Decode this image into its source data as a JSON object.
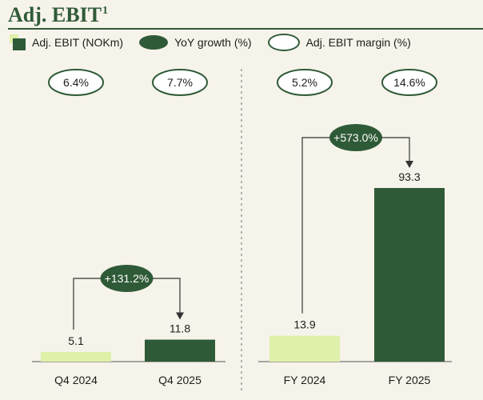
{
  "title": "Adj. EBIT",
  "title_footnote": "1",
  "legend": [
    {
      "label": "Adj. EBIT (NOKm)",
      "icon": "bar-swatch"
    },
    {
      "label": "YoY growth (%)",
      "icon": "dark-oval"
    },
    {
      "label": "Adj. EBIT margin (%)",
      "icon": "outline-oval"
    }
  ],
  "colors": {
    "prior_bar": "#dff0a8",
    "current_bar": "#2f5a37",
    "accent": "#2f5a37",
    "background": "#f6f3ea"
  },
  "chart_data": [
    {
      "type": "bar",
      "categories": [
        "Q4 2024",
        "Q4 2025"
      ],
      "values": [
        5.1,
        11.8
      ],
      "value_labels": [
        "5.1",
        "11.8"
      ],
      "margins": [
        "6.4%",
        "7.7%"
      ],
      "growth": "+131.2%",
      "series_name": "Adj. EBIT (NOKm)"
    },
    {
      "type": "bar",
      "categories": [
        "FY 2024",
        "FY 2025"
      ],
      "values": [
        13.9,
        93.3
      ],
      "value_labels": [
        "13.9",
        "93.3"
      ],
      "margins": [
        "5.2%",
        "14.6%"
      ],
      "growth": "+573.0%",
      "series_name": "Adj. EBIT (NOKm)"
    }
  ]
}
